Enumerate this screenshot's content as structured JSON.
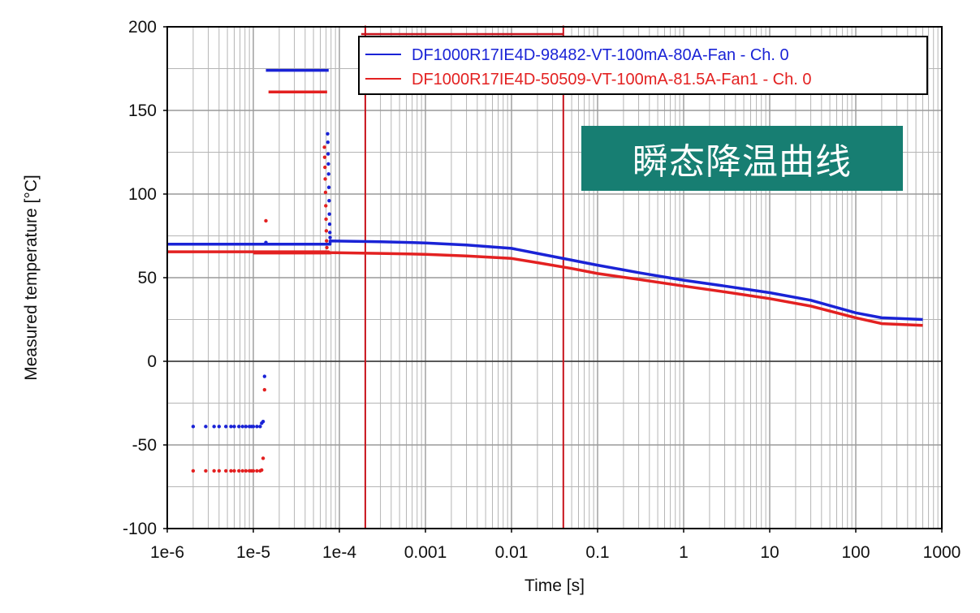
{
  "overlay_label": "瞬态降温曲线",
  "colors": {
    "series_blue": "#1a23d6",
    "series_red": "#e32121",
    "marker_red": "#c8131c",
    "badge_bg": "#177e72",
    "grid": "#b5b5b5"
  },
  "chart_data": {
    "type": "scatter",
    "title": "",
    "xlabel": "Time [s]",
    "ylabel": "Measured temperature [°C]",
    "xscale": "log",
    "xlim": [
      1e-06,
      1000
    ],
    "ylim": [
      -100,
      200
    ],
    "xticks": [
      1e-06,
      1e-05,
      0.0001,
      0.001,
      0.01,
      0.1,
      1,
      10,
      100,
      1000
    ],
    "xtick_labels": [
      "1e-6",
      "1e-5",
      "1e-4",
      "0.001",
      "0.01",
      "0.1",
      "1",
      "10",
      "100",
      "1000"
    ],
    "yticks": [
      -100,
      -50,
      0,
      50,
      100,
      150,
      200
    ],
    "ytick_labels": [
      "-100",
      "-50",
      "0",
      "50",
      "100",
      "150",
      "200"
    ],
    "grid": true,
    "legend_position": "top-right",
    "vertical_markers": [
      0.0002,
      0.04
    ],
    "series": [
      {
        "name": "DF1000R17IE4D-98482-VT-100mA-80A-Fan - Ch. 0",
        "line": [
          [
            1e-06,
            70
          ],
          [
            7.8e-05,
            70
          ],
          [
            7.8e-05,
            72
          ],
          [
            0.0003,
            71.5
          ],
          [
            0.001,
            70.8
          ],
          [
            0.003,
            69.5
          ],
          [
            0.01,
            67.5
          ],
          [
            0.02,
            64.5
          ],
          [
            0.05,
            60.5
          ],
          [
            0.1,
            57.5
          ],
          [
            0.3,
            53
          ],
          [
            1,
            48.5
          ],
          [
            3,
            45
          ],
          [
            10,
            41
          ],
          [
            30,
            36.5
          ],
          [
            100,
            29
          ],
          [
            200,
            26
          ],
          [
            600,
            25
          ]
        ],
        "step_line": [
          [
            1.4e-05,
            174
          ],
          [
            7.5e-05,
            174
          ]
        ],
        "points": [
          [
            2e-06,
            -39
          ],
          [
            2.8e-06,
            -39
          ],
          [
            3.5e-06,
            -39
          ],
          [
            4e-06,
            -39
          ],
          [
            4.8e-06,
            -39
          ],
          [
            5.5e-06,
            -39
          ],
          [
            6e-06,
            -39
          ],
          [
            6.8e-06,
            -39
          ],
          [
            7.5e-06,
            -39
          ],
          [
            8.2e-06,
            -39
          ],
          [
            9e-06,
            -39
          ],
          [
            9.5e-06,
            -39
          ],
          [
            1e-05,
            -39
          ],
          [
            1.1e-05,
            -39
          ],
          [
            1.2e-05,
            -39
          ],
          [
            1.25e-05,
            -37
          ],
          [
            1.3e-05,
            -36
          ],
          [
            1.35e-05,
            -9
          ],
          [
            1.4e-05,
            71
          ],
          [
            7.3e-05,
            136
          ],
          [
            7.35e-05,
            131
          ],
          [
            7.4e-05,
            124
          ],
          [
            7.45e-05,
            118
          ],
          [
            7.5e-05,
            112
          ],
          [
            7.55e-05,
            104
          ],
          [
            7.6e-05,
            96
          ],
          [
            7.65e-05,
            88
          ],
          [
            7.7e-05,
            82
          ],
          [
            7.75e-05,
            77
          ],
          [
            7.8e-05,
            74
          ]
        ]
      },
      {
        "name": "DF1000R17IE4D-50509-VT-100mA-81.5A-Fan1 - Ch. 0",
        "line": [
          [
            1e-06,
            65.5
          ],
          [
            7.5e-05,
            65.5
          ],
          [
            7.5e-05,
            65
          ],
          [
            0.0003,
            64.5
          ],
          [
            0.001,
            64
          ],
          [
            0.003,
            63
          ],
          [
            0.01,
            61.5
          ],
          [
            0.02,
            59
          ],
          [
            0.05,
            55.5
          ],
          [
            0.1,
            52.5
          ],
          [
            0.3,
            49
          ],
          [
            1,
            45
          ],
          [
            3,
            41.5
          ],
          [
            10,
            37.5
          ],
          [
            30,
            33
          ],
          [
            100,
            26
          ],
          [
            200,
            22.5
          ],
          [
            600,
            21.5
          ]
        ],
        "line2": [
          [
            1e-05,
            64.5
          ],
          [
            8e-05,
            64.5
          ]
        ],
        "step_line": [
          [
            1.5e-05,
            161
          ],
          [
            7.2e-05,
            161
          ]
        ],
        "points": [
          [
            2e-06,
            -65.5
          ],
          [
            2.8e-06,
            -65.5
          ],
          [
            3.5e-06,
            -65.5
          ],
          [
            4e-06,
            -65.5
          ],
          [
            4.8e-06,
            -65.5
          ],
          [
            5.5e-06,
            -65.5
          ],
          [
            6e-06,
            -65.5
          ],
          [
            6.8e-06,
            -65.5
          ],
          [
            7.5e-06,
            -65.5
          ],
          [
            8.2e-06,
            -65.5
          ],
          [
            9e-06,
            -65.5
          ],
          [
            9.5e-06,
            -65.5
          ],
          [
            1e-05,
            -65.5
          ],
          [
            1.1e-05,
            -65.5
          ],
          [
            1.2e-05,
            -65.5
          ],
          [
            1.25e-05,
            -65
          ],
          [
            1.3e-05,
            -58
          ],
          [
            1.35e-05,
            -17
          ],
          [
            1.4e-05,
            84
          ],
          [
            6.7e-05,
            128
          ],
          [
            6.75e-05,
            122
          ],
          [
            6.8e-05,
            116
          ],
          [
            6.85e-05,
            109
          ],
          [
            6.9e-05,
            101
          ],
          [
            6.95e-05,
            93
          ],
          [
            7e-05,
            85
          ],
          [
            7.05e-05,
            78
          ],
          [
            7.1e-05,
            72
          ],
          [
            7.15e-05,
            68
          ]
        ]
      }
    ]
  }
}
